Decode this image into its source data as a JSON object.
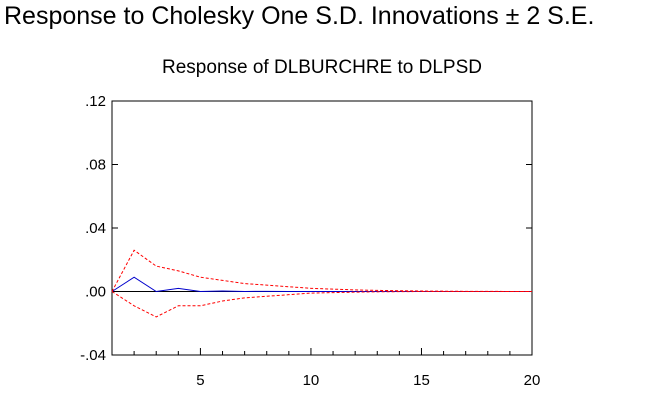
{
  "figure": {
    "title": "Response to Cholesky One S.D. Innovations ± 2 S.E."
  },
  "chart_data": {
    "type": "line",
    "title": "Response of DLBURCHRE to DLPSD",
    "xlabel": "",
    "ylabel": "",
    "xlim": [
      1,
      20
    ],
    "ylim": [
      -0.04,
      0.12
    ],
    "x_ticks": [
      5,
      10,
      15,
      20
    ],
    "x_tick_labels": [
      "5",
      "10",
      "15",
      "20"
    ],
    "y_ticks": [
      -0.04,
      0.0,
      0.04,
      0.08,
      0.12
    ],
    "y_tick_labels": [
      "-.04",
      ".00",
      ".04",
      ".08",
      ".12"
    ],
    "grid": false,
    "legend": "none",
    "colors": {
      "response": "#0000cc",
      "bands": "#ff0000",
      "zero": "#000000"
    },
    "x": [
      1,
      2,
      3,
      4,
      5,
      6,
      7,
      8,
      9,
      10,
      11,
      12,
      13,
      14,
      15,
      16,
      17,
      18,
      19,
      20
    ],
    "series": [
      {
        "role": "response",
        "style": "solid",
        "values": [
          0.0,
          0.009,
          0.0,
          0.002,
          0.0,
          0.0003,
          0.0,
          0.0001,
          0.0,
          0.0,
          0.0,
          0.0,
          0.0,
          0.0,
          0.0,
          0.0,
          0.0,
          0.0,
          0.0,
          0.0
        ]
      },
      {
        "role": "upper-band",
        "style": "dashed",
        "values": [
          0.0,
          0.026,
          0.016,
          0.013,
          0.009,
          0.007,
          0.005,
          0.004,
          0.003,
          0.002,
          0.0015,
          0.001,
          0.0007,
          0.0005,
          0.0003,
          0.0002,
          0.0001,
          0.0001,
          0.0,
          0.0
        ]
      },
      {
        "role": "lower-band",
        "style": "dashed",
        "values": [
          0.0,
          -0.009,
          -0.016,
          -0.009,
          -0.009,
          -0.006,
          -0.004,
          -0.003,
          -0.002,
          -0.001,
          -0.0007,
          -0.0004,
          -0.0002,
          -0.0001,
          0.0,
          0.0,
          0.0,
          0.0,
          0.0,
          0.0
        ]
      }
    ]
  }
}
